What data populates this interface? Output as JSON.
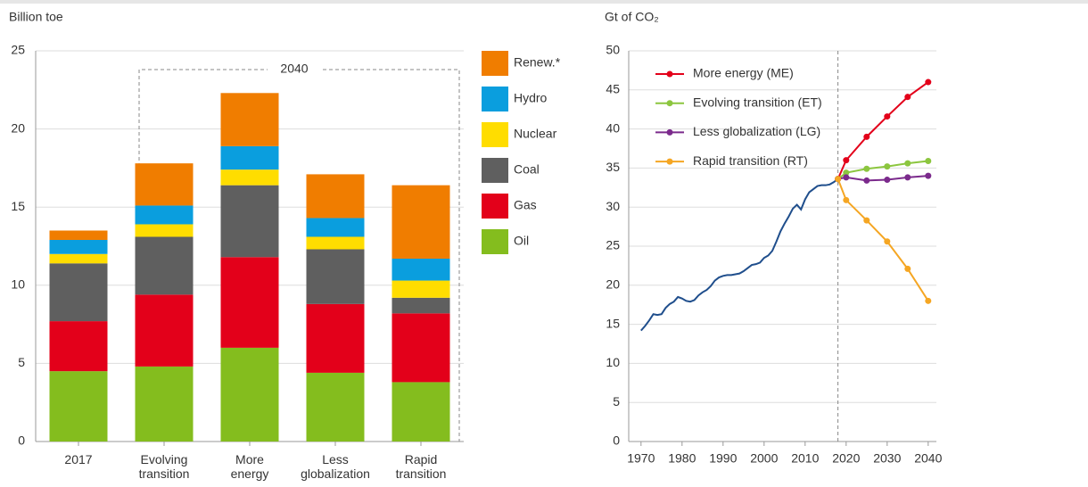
{
  "chart_data": [
    {
      "type": "stacked_bar",
      "y_label": "Billion toe",
      "annotation": "2040",
      "categories": [
        "2017",
        "Evolving\ntransition",
        "More\nenergy",
        "Less\nglobalization",
        "Rapid\ntransition"
      ],
      "ylim": [
        0,
        25
      ],
      "yticks": [
        0,
        5,
        10,
        15,
        20,
        25
      ],
      "grid": true,
      "series": [
        {
          "name": "Oil",
          "color": "#84bd1e",
          "values": [
            4.5,
            4.8,
            6.0,
            4.4,
            3.8
          ]
        },
        {
          "name": "Gas",
          "color": "#e3001a",
          "values": [
            3.2,
            4.6,
            5.8,
            4.4,
            4.4
          ]
        },
        {
          "name": "Coal",
          "color": "#5f5f5f",
          "values": [
            3.7,
            3.7,
            4.6,
            3.5,
            1.0
          ]
        },
        {
          "name": "Nuclear",
          "color": "#ffdd00",
          "values": [
            0.6,
            0.8,
            1.0,
            0.8,
            1.1
          ]
        },
        {
          "name": "Hydro",
          "color": "#0a9ede",
          "values": [
            0.9,
            1.2,
            1.5,
            1.2,
            1.4
          ]
        },
        {
          "name": "Renew.*",
          "color": "#f07d00",
          "values": [
            0.6,
            2.7,
            3.4,
            2.8,
            4.7
          ]
        }
      ]
    },
    {
      "type": "line",
      "y_label": "Gt of CO₂",
      "xlim": [
        1967,
        2042
      ],
      "xticks": [
        1970,
        1980,
        1990,
        2000,
        2010,
        2020,
        2030,
        2040
      ],
      "ylim": [
        0,
        50
      ],
      "yticks": [
        0,
        5,
        10,
        15,
        20,
        25,
        30,
        35,
        40,
        45,
        50
      ],
      "grid": true,
      "reference_x": 2018,
      "series": [
        {
          "color": "#1f4e8c",
          "markers": false,
          "x": [
            1970,
            1971,
            1972,
            1973,
            1974,
            1975,
            1976,
            1977,
            1978,
            1979,
            1980,
            1981,
            1982,
            1983,
            1984,
            1985,
            1986,
            1987,
            1988,
            1989,
            1990,
            1991,
            1992,
            1993,
            1994,
            1995,
            1996,
            1997,
            1998,
            1999,
            2000,
            2001,
            2002,
            2003,
            2004,
            2005,
            2006,
            2007,
            2008,
            2009,
            2010,
            2011,
            2012,
            2013,
            2014,
            2015,
            2016,
            2017,
            2018
          ],
          "values": [
            14.2,
            14.8,
            15.5,
            16.3,
            16.2,
            16.3,
            17.1,
            17.6,
            17.9,
            18.5,
            18.3,
            18.0,
            17.9,
            18.1,
            18.7,
            19.1,
            19.4,
            19.9,
            20.6,
            21.0,
            21.2,
            21.3,
            21.3,
            21.4,
            21.5,
            21.8,
            22.2,
            22.6,
            22.7,
            22.9,
            23.5,
            23.8,
            24.4,
            25.6,
            26.9,
            27.9,
            28.8,
            29.8,
            30.3,
            29.7,
            31.0,
            31.9,
            32.3,
            32.7,
            32.8,
            32.8,
            32.9,
            33.2,
            33.6
          ]
        },
        {
          "name": "More energy (ME)",
          "color": "#e3001a",
          "markers": true,
          "x": [
            2018,
            2020,
            2025,
            2030,
            2035,
            2040
          ],
          "values": [
            33.6,
            36.0,
            39.0,
            41.6,
            44.1,
            46.0
          ]
        },
        {
          "name": "Evolving transition (ET)",
          "color": "#8cc63f",
          "markers": true,
          "x": [
            2018,
            2020,
            2025,
            2030,
            2035,
            2040
          ],
          "values": [
            33.6,
            34.4,
            34.9,
            35.2,
            35.6,
            35.9
          ]
        },
        {
          "name": "Less globalization (LG)",
          "color": "#7b2a8c",
          "markers": true,
          "x": [
            2018,
            2020,
            2025,
            2030,
            2035,
            2040
          ],
          "values": [
            33.6,
            33.8,
            33.4,
            33.5,
            33.8,
            34.0
          ]
        },
        {
          "name": "Rapid transition (RT)",
          "color": "#f5a623",
          "markers": true,
          "x": [
            2018,
            2020,
            2025,
            2030,
            2035,
            2040
          ],
          "values": [
            33.6,
            30.9,
            28.3,
            25.6,
            22.1,
            18.0
          ]
        }
      ]
    }
  ]
}
